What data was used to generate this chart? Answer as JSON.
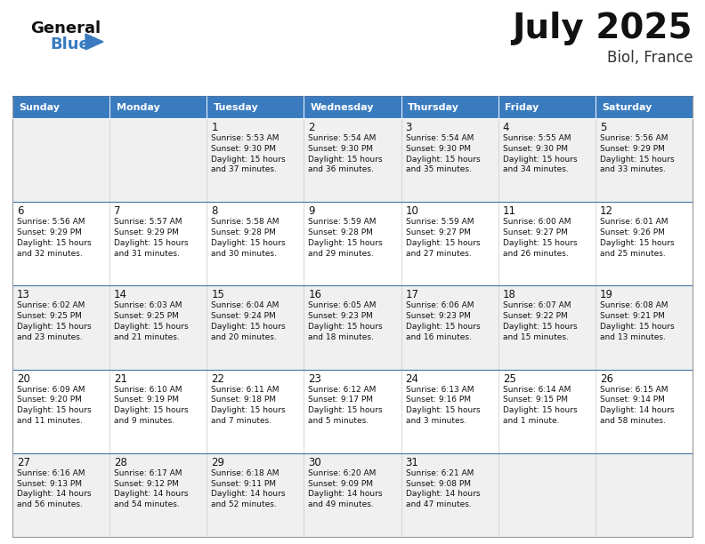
{
  "title": "July 2025",
  "subtitle": "Biol, France",
  "header_bg": "#3a7bbf",
  "header_text": "#ffffff",
  "weekdays": [
    "Sunday",
    "Monday",
    "Tuesday",
    "Wednesday",
    "Thursday",
    "Friday",
    "Saturday"
  ],
  "cell_bg_odd": "#f0f0f0",
  "cell_bg_even": "#ffffff",
  "border_color": "#4472a8",
  "grid_color": "#c8c8c8",
  "text_color": "#111111",
  "calendar": [
    [
      {
        "day": "",
        "info": ""
      },
      {
        "day": "",
        "info": ""
      },
      {
        "day": "1",
        "info": "Sunrise: 5:53 AM\nSunset: 9:30 PM\nDaylight: 15 hours\nand 37 minutes."
      },
      {
        "day": "2",
        "info": "Sunrise: 5:54 AM\nSunset: 9:30 PM\nDaylight: 15 hours\nand 36 minutes."
      },
      {
        "day": "3",
        "info": "Sunrise: 5:54 AM\nSunset: 9:30 PM\nDaylight: 15 hours\nand 35 minutes."
      },
      {
        "day": "4",
        "info": "Sunrise: 5:55 AM\nSunset: 9:30 PM\nDaylight: 15 hours\nand 34 minutes."
      },
      {
        "day": "5",
        "info": "Sunrise: 5:56 AM\nSunset: 9:29 PM\nDaylight: 15 hours\nand 33 minutes."
      }
    ],
    [
      {
        "day": "6",
        "info": "Sunrise: 5:56 AM\nSunset: 9:29 PM\nDaylight: 15 hours\nand 32 minutes."
      },
      {
        "day": "7",
        "info": "Sunrise: 5:57 AM\nSunset: 9:29 PM\nDaylight: 15 hours\nand 31 minutes."
      },
      {
        "day": "8",
        "info": "Sunrise: 5:58 AM\nSunset: 9:28 PM\nDaylight: 15 hours\nand 30 minutes."
      },
      {
        "day": "9",
        "info": "Sunrise: 5:59 AM\nSunset: 9:28 PM\nDaylight: 15 hours\nand 29 minutes."
      },
      {
        "day": "10",
        "info": "Sunrise: 5:59 AM\nSunset: 9:27 PM\nDaylight: 15 hours\nand 27 minutes."
      },
      {
        "day": "11",
        "info": "Sunrise: 6:00 AM\nSunset: 9:27 PM\nDaylight: 15 hours\nand 26 minutes."
      },
      {
        "day": "12",
        "info": "Sunrise: 6:01 AM\nSunset: 9:26 PM\nDaylight: 15 hours\nand 25 minutes."
      }
    ],
    [
      {
        "day": "13",
        "info": "Sunrise: 6:02 AM\nSunset: 9:25 PM\nDaylight: 15 hours\nand 23 minutes."
      },
      {
        "day": "14",
        "info": "Sunrise: 6:03 AM\nSunset: 9:25 PM\nDaylight: 15 hours\nand 21 minutes."
      },
      {
        "day": "15",
        "info": "Sunrise: 6:04 AM\nSunset: 9:24 PM\nDaylight: 15 hours\nand 20 minutes."
      },
      {
        "day": "16",
        "info": "Sunrise: 6:05 AM\nSunset: 9:23 PM\nDaylight: 15 hours\nand 18 minutes."
      },
      {
        "day": "17",
        "info": "Sunrise: 6:06 AM\nSunset: 9:23 PM\nDaylight: 15 hours\nand 16 minutes."
      },
      {
        "day": "18",
        "info": "Sunrise: 6:07 AM\nSunset: 9:22 PM\nDaylight: 15 hours\nand 15 minutes."
      },
      {
        "day": "19",
        "info": "Sunrise: 6:08 AM\nSunset: 9:21 PM\nDaylight: 15 hours\nand 13 minutes."
      }
    ],
    [
      {
        "day": "20",
        "info": "Sunrise: 6:09 AM\nSunset: 9:20 PM\nDaylight: 15 hours\nand 11 minutes."
      },
      {
        "day": "21",
        "info": "Sunrise: 6:10 AM\nSunset: 9:19 PM\nDaylight: 15 hours\nand 9 minutes."
      },
      {
        "day": "22",
        "info": "Sunrise: 6:11 AM\nSunset: 9:18 PM\nDaylight: 15 hours\nand 7 minutes."
      },
      {
        "day": "23",
        "info": "Sunrise: 6:12 AM\nSunset: 9:17 PM\nDaylight: 15 hours\nand 5 minutes."
      },
      {
        "day": "24",
        "info": "Sunrise: 6:13 AM\nSunset: 9:16 PM\nDaylight: 15 hours\nand 3 minutes."
      },
      {
        "day": "25",
        "info": "Sunrise: 6:14 AM\nSunset: 9:15 PM\nDaylight: 15 hours\nand 1 minute."
      },
      {
        "day": "26",
        "info": "Sunrise: 6:15 AM\nSunset: 9:14 PM\nDaylight: 14 hours\nand 58 minutes."
      }
    ],
    [
      {
        "day": "27",
        "info": "Sunrise: 6:16 AM\nSunset: 9:13 PM\nDaylight: 14 hours\nand 56 minutes."
      },
      {
        "day": "28",
        "info": "Sunrise: 6:17 AM\nSunset: 9:12 PM\nDaylight: 14 hours\nand 54 minutes."
      },
      {
        "day": "29",
        "info": "Sunrise: 6:18 AM\nSunset: 9:11 PM\nDaylight: 14 hours\nand 52 minutes."
      },
      {
        "day": "30",
        "info": "Sunrise: 6:20 AM\nSunset: 9:09 PM\nDaylight: 14 hours\nand 49 minutes."
      },
      {
        "day": "31",
        "info": "Sunrise: 6:21 AM\nSunset: 9:08 PM\nDaylight: 14 hours\nand 47 minutes."
      },
      {
        "day": "",
        "info": ""
      },
      {
        "day": "",
        "info": ""
      }
    ]
  ]
}
